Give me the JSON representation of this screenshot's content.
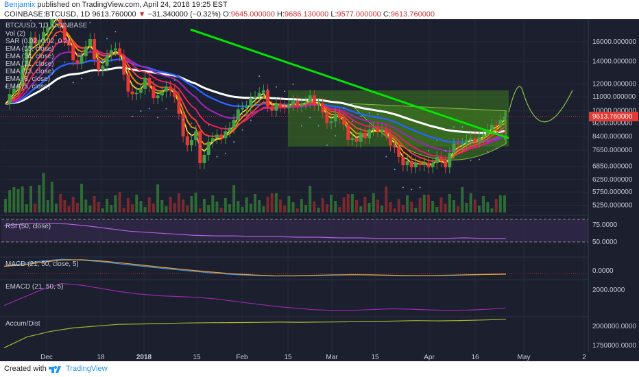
{
  "header": {
    "author": "Benjamix",
    "published_text": "published on TradingView.com, April 24, 2018 19:25 EST",
    "symbol": "COINBASE:BTCUSD, 1D",
    "last": "9613.760000",
    "change": "−31.340000 (−0.32%)",
    "open_label": "O:",
    "open": "9645.000000",
    "high_label": "H:",
    "high": "9686.130000",
    "low_label": "L:",
    "low": "9577.000000",
    "close_label": "C:",
    "close": "9613.760000"
  },
  "footer": {
    "created_with": "Created with",
    "brand": "TradingView"
  },
  "colors": {
    "background": "#1b1f2e",
    "ema5": "#ffeb3b",
    "ema8": "#ff9800",
    "ema13": "#f44336",
    "ema21": "#e91e63",
    "ema34": "#9c27b0",
    "ema55": "#2962ff",
    "ema_white": "#ffffff",
    "trendline": "#00e600",
    "cup": "#3d7a1e",
    "up_candle": "#43a047",
    "down_candle": "#e53935",
    "rsi": "#b060e0",
    "macd": "#4a90d9",
    "signal": "#e6a23c",
    "emacd": "#9c27b0",
    "accum": "#a8b830"
  },
  "chart_data": {
    "type": "candlestick",
    "title": "BTC/USD, 1D, COINBASE",
    "legend": [
      "Vol (2)",
      "SAR (0.02, 0.02, 0.2)",
      "EMA (55, close)",
      "EMA (34, close)",
      "EMA (21, close)",
      "EMA (13, close)",
      "EMA (8, close)",
      "EMA (5, close)"
    ],
    "y_scale": "log",
    "y_ticks": [
      "16000.000000",
      "14000.000000",
      "12000.000000",
      "11000.000000",
      "10000.000000",
      "9200.000000",
      "8400.000000",
      "7650.000000",
      "6850.000000",
      "6250.000000",
      "5750.000000",
      "5250.000000"
    ],
    "x_ticks": [
      "Dec",
      "18",
      "2018",
      "15",
      "Feb",
      "15",
      "Mar",
      "15",
      "Apr",
      "16",
      "May",
      "2"
    ],
    "current_price": 9613.76,
    "close_series": [
      10500,
      11200,
      11600,
      11900,
      13600,
      15200,
      16500,
      15800,
      16200,
      17100,
      17600,
      19000,
      19400,
      17800,
      16200,
      15600,
      14100,
      13800,
      14500,
      15500,
      16300,
      14200,
      13200,
      13600,
      14600,
      15100,
      15300,
      14600,
      12800,
      11400,
      11200,
      11300,
      11600,
      12500,
      11800,
      10900,
      11100,
      11400,
      11800,
      11500,
      11000,
      9800,
      8400,
      7900,
      8200,
      8700,
      7000,
      7400,
      8100,
      8300,
      8500,
      8300,
      8700,
      8900,
      9400,
      10100,
      10200,
      10300,
      10900,
      11000,
      11300,
      11500,
      10300,
      10000,
      10500,
      10300,
      10200,
      10400,
      10700,
      10300,
      10500,
      10600,
      11100,
      10400,
      10500,
      9900,
      9200,
      9300,
      9800,
      9500,
      9100,
      8200,
      8300,
      8100,
      8600,
      8300,
      8800,
      8900,
      8700,
      8800,
      8500,
      7900,
      7800,
      7300,
      6900,
      7100,
      6800,
      7000,
      6900,
      7000,
      6800,
      7000,
      7300,
      7100,
      6800,
      7500,
      8000,
      7950,
      8000,
      8200,
      8300,
      8100,
      8350,
      8500,
      8800,
      9100,
      9000,
      9400,
      9600
    ],
    "trendline": {
      "from": {
        "date": "2017-12-25",
        "price": 17400
      },
      "to": {
        "date": "2018-04-24",
        "price": 8300
      }
    },
    "cup_target_zone": {
      "top": 11500,
      "bottom": 9900
    },
    "rsi": {
      "label": "RSI (50, close)",
      "ticks": [
        "75.0000",
        "50.0000"
      ],
      "values": [
        71,
        73,
        74,
        73,
        70,
        66,
        62,
        60,
        58,
        56,
        55,
        55,
        54,
        54,
        53,
        53,
        52,
        52,
        51,
        51,
        51,
        51,
        52,
        51,
        51
      ]
    },
    "macd": {
      "label": "MACD (21, 50, close, 5)",
      "ticks": [
        "0.0000"
      ],
      "values": [
        850,
        1200,
        1500,
        1700,
        1600,
        1400,
        1150,
        900,
        650,
        420,
        200,
        0,
        -150,
        -260,
        -320,
        -300,
        -240,
        -180,
        -160,
        -200,
        -260,
        -300,
        -280,
        -220,
        -160,
        -120,
        -80
      ]
    },
    "emacd": {
      "label": "EMACD (21, 50, 5)",
      "ticks": [
        "2000.0000"
      ],
      "values": [
        1100,
        1600,
        2100,
        2450,
        2350,
        2150,
        1950,
        1800,
        1700,
        1650,
        1600,
        1500,
        1350,
        1200,
        1050,
        950,
        850,
        800,
        800,
        850,
        900,
        880,
        830,
        800,
        820,
        870,
        950
      ]
    },
    "accum_dist": {
      "label": "Accum/Dist",
      "ticks": [
        "2000000.0000",
        "1750000.0000"
      ],
      "values": [
        1700000,
        1820000,
        1880000,
        1920000,
        1940000,
        1960000,
        1965000,
        1970000,
        1975000,
        1978000,
        1980000,
        1982000,
        1985000,
        1984000,
        1986000,
        1988000,
        1992000,
        1996000,
        2002000,
        1999000,
        2003000,
        2009000,
        2016000
      ]
    }
  }
}
